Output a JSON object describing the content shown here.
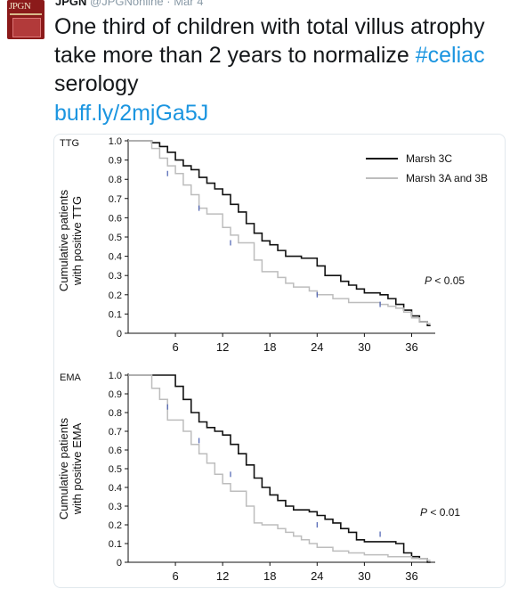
{
  "account": {
    "avatar_logo": "JPGN",
    "name": "JPGN",
    "handle": "@JPGNonline",
    "separator": "·",
    "date": "Mar 4"
  },
  "tweet": {
    "text_before_hashtag": "One third of children with total villus atrophy take more than 2 years to normalize ",
    "hashtag": "#celiac",
    "text_after_hashtag": " serology",
    "link": "buff.ly/2mjGa5J"
  },
  "colors": {
    "series_3c": "#111111",
    "series_3ab": "#bdbdbd",
    "censor_marker": "#4a5fb0",
    "link": "#1b95e0"
  },
  "chart_data": [
    {
      "type": "line",
      "title": "TTG",
      "xlabel": "",
      "ylabel": "Cumulative patients with positive TTG",
      "x_ticks": [
        6,
        12,
        18,
        24,
        30,
        36
      ],
      "y_ticks": [
        0,
        0.1,
        0.2,
        0.3,
        0.4,
        0.5,
        0.6,
        0.7,
        0.8,
        0.9,
        1.0
      ],
      "y_tick_labels": [
        "0",
        "0.1",
        "0.2",
        "0.3",
        "0.4",
        "0.5",
        "0.6",
        "0.7",
        "0.8",
        "0.9",
        "1.0"
      ],
      "xlim": [
        0,
        39
      ],
      "ylim": [
        0,
        1
      ],
      "legend": "top-right",
      "annotation": "P < 0.05",
      "annotation_prefix": "P",
      "annotation_suffix": " < 0.05",
      "series": [
        {
          "name": "Marsh 3C",
          "step": [
            [
              0,
              1.0
            ],
            [
              3,
              0.99
            ],
            [
              4,
              0.97
            ],
            [
              5,
              0.94
            ],
            [
              6,
              0.9
            ],
            [
              7,
              0.87
            ],
            [
              8,
              0.85
            ],
            [
              9,
              0.81
            ],
            [
              10,
              0.78
            ],
            [
              11,
              0.75
            ],
            [
              12,
              0.72
            ],
            [
              13,
              0.67
            ],
            [
              14,
              0.63
            ],
            [
              15,
              0.57
            ],
            [
              16,
              0.52
            ],
            [
              17,
              0.48
            ],
            [
              18,
              0.46
            ],
            [
              19,
              0.43
            ],
            [
              20,
              0.4
            ],
            [
              22,
              0.39
            ],
            [
              24,
              0.35
            ],
            [
              25,
              0.3
            ],
            [
              27,
              0.27
            ],
            [
              28,
              0.25
            ],
            [
              29,
              0.23
            ],
            [
              30,
              0.21
            ],
            [
              32,
              0.2
            ],
            [
              33,
              0.18
            ],
            [
              34,
              0.15
            ],
            [
              35,
              0.12
            ],
            [
              36,
              0.09
            ],
            [
              37,
              0.06
            ],
            [
              38,
              0.04
            ]
          ]
        },
        {
          "name": "Marsh 3A and 3B",
          "step": [
            [
              0,
              1.0
            ],
            [
              3,
              0.96
            ],
            [
              4,
              0.91
            ],
            [
              5,
              0.87
            ],
            [
              6,
              0.83
            ],
            [
              7,
              0.77
            ],
            [
              8,
              0.72
            ],
            [
              9,
              0.65
            ],
            [
              10,
              0.62
            ],
            [
              12,
              0.55
            ],
            [
              13,
              0.51
            ],
            [
              14,
              0.47
            ],
            [
              16,
              0.38
            ],
            [
              17,
              0.32
            ],
            [
              19,
              0.29
            ],
            [
              20,
              0.26
            ],
            [
              21,
              0.24
            ],
            [
              23,
              0.22
            ],
            [
              24,
              0.2
            ],
            [
              26,
              0.18
            ],
            [
              28,
              0.16
            ],
            [
              32,
              0.15
            ],
            [
              33,
              0.14
            ],
            [
              34,
              0.13
            ],
            [
              35,
              0.11
            ],
            [
              36,
              0.08
            ],
            [
              37,
              0.06
            ],
            [
              38,
              0.05
            ]
          ]
        }
      ]
    },
    {
      "type": "line",
      "title": "EMA",
      "xlabel": "",
      "ylabel": "Cumulative patients with positive EMA",
      "x_ticks": [
        6,
        12,
        18,
        24,
        30,
        36
      ],
      "y_ticks": [
        0,
        0.1,
        0.2,
        0.3,
        0.4,
        0.5,
        0.6,
        0.7,
        0.8,
        0.9,
        1.0
      ],
      "y_tick_labels": [
        "0",
        "0.1",
        "0.2",
        "0.3",
        "0.4",
        "0.5",
        "0.6",
        "0.7",
        "0.8",
        "0.9",
        "1.0"
      ],
      "xlim": [
        0,
        39
      ],
      "ylim": [
        0,
        1
      ],
      "legend": "",
      "annotation": "P < 0.01",
      "annotation_prefix": "P",
      "annotation_suffix": " < 0.01",
      "series": [
        {
          "name": "Marsh 3C",
          "step": [
            [
              0,
              1.0
            ],
            [
              6,
              0.94
            ],
            [
              7,
              0.87
            ],
            [
              8,
              0.8
            ],
            [
              9,
              0.75
            ],
            [
              10,
              0.72
            ],
            [
              11,
              0.7
            ],
            [
              12,
              0.68
            ],
            [
              13,
              0.63
            ],
            [
              14,
              0.58
            ],
            [
              15,
              0.52
            ],
            [
              16,
              0.45
            ],
            [
              17,
              0.4
            ],
            [
              18,
              0.36
            ],
            [
              19,
              0.33
            ],
            [
              20,
              0.3
            ],
            [
              21,
              0.28
            ],
            [
              23,
              0.27
            ],
            [
              24,
              0.25
            ],
            [
              25,
              0.23
            ],
            [
              26,
              0.21
            ],
            [
              27,
              0.18
            ],
            [
              28,
              0.16
            ],
            [
              29,
              0.12
            ],
            [
              30,
              0.11
            ],
            [
              34,
              0.1
            ],
            [
              35,
              0.05
            ],
            [
              36,
              0.03
            ],
            [
              37,
              0.02
            ],
            [
              38,
              0.0
            ]
          ]
        },
        {
          "name": "Marsh 3A and 3B",
          "step": [
            [
              0,
              1.0
            ],
            [
              3,
              0.93
            ],
            [
              4,
              0.87
            ],
            [
              5,
              0.76
            ],
            [
              7,
              0.7
            ],
            [
              8,
              0.63
            ],
            [
              9,
              0.58
            ],
            [
              10,
              0.53
            ],
            [
              11,
              0.47
            ],
            [
              12,
              0.42
            ],
            [
              13,
              0.38
            ],
            [
              15,
              0.3
            ],
            [
              16,
              0.21
            ],
            [
              17,
              0.2
            ],
            [
              19,
              0.18
            ],
            [
              20,
              0.16
            ],
            [
              21,
              0.14
            ],
            [
              22,
              0.12
            ],
            [
              23,
              0.1
            ],
            [
              24,
              0.08
            ],
            [
              26,
              0.06
            ],
            [
              28,
              0.05
            ],
            [
              30,
              0.04
            ],
            [
              33,
              0.03
            ],
            [
              36,
              0.02
            ],
            [
              38,
              0.01
            ]
          ]
        }
      ]
    }
  ]
}
